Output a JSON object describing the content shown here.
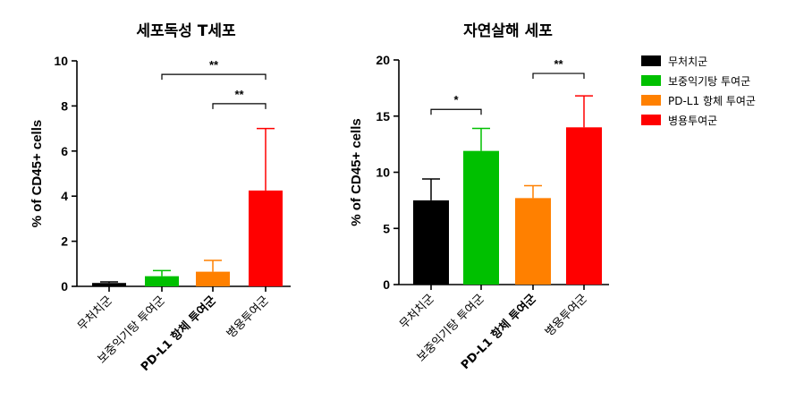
{
  "legend": [
    {
      "label": "무처치군",
      "color": "#000000"
    },
    {
      "label": "보중익기탕 투여군",
      "color": "#00C000"
    },
    {
      "label": "PD-L1 항체 투여군",
      "color": "#FF8000"
    },
    {
      "label": "병용투여군",
      "color": "#FF0000"
    }
  ],
  "chart_data": [
    {
      "type": "bar",
      "title": "세포독성 T세포",
      "ylabel": "% of CD45+ cells",
      "xlabel": "",
      "ylim": [
        0,
        10
      ],
      "yticks": [
        0,
        2,
        4,
        6,
        8,
        10
      ],
      "categories": [
        "무처치군",
        "보중익기탕 투여군",
        "PD-L1 항체 투여군",
        "병용투여군"
      ],
      "values": [
        0.15,
        0.45,
        0.65,
        4.25
      ],
      "errors": [
        0.05,
        0.25,
        0.5,
        2.75
      ],
      "colors": [
        "#000000",
        "#00C000",
        "#FF8000",
        "#FF0000"
      ],
      "significance": [
        {
          "from": 1,
          "to": 3,
          "y": 9.4,
          "label": "**"
        },
        {
          "from": 2,
          "to": 3,
          "y": 8.1,
          "label": "**"
        }
      ]
    },
    {
      "type": "bar",
      "title": "자연살해 세포",
      "ylabel": "% of CD45+ cells",
      "xlabel": "",
      "ylim": [
        0,
        20
      ],
      "yticks": [
        0,
        5,
        10,
        15,
        20
      ],
      "categories": [
        "무처치군",
        "보중익기탕 투여군",
        "PD-L1 항체 투여군",
        "병용투여군"
      ],
      "values": [
        7.5,
        11.9,
        7.7,
        14.0
      ],
      "errors": [
        1.9,
        2.0,
        1.1,
        2.8
      ],
      "colors": [
        "#000000",
        "#00C000",
        "#FF8000",
        "#FF0000"
      ],
      "significance": [
        {
          "from": 0,
          "to": 1,
          "y": 15.6,
          "label": "*"
        },
        {
          "from": 2,
          "to": 3,
          "y": 18.8,
          "label": "**"
        }
      ]
    }
  ]
}
